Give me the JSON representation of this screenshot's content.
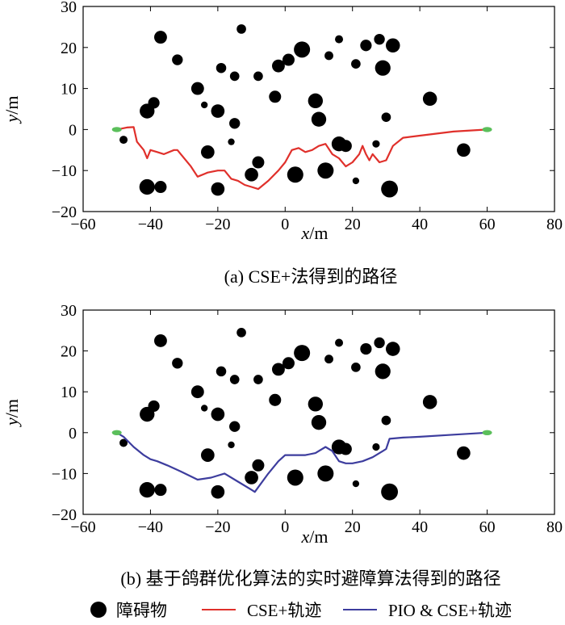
{
  "chart_data": [
    {
      "type": "scatter",
      "caption": "(a) CSE+法得到的路径",
      "xlabel": "x/m",
      "ylabel": "y/m",
      "xlim": [
        -60,
        80
      ],
      "ylim": [
        -20,
        30
      ],
      "xticks": [
        -60,
        -40,
        -20,
        0,
        20,
        40,
        60,
        80
      ],
      "yticks": [
        -20,
        -10,
        0,
        10,
        20,
        30
      ],
      "grid": false,
      "start_point": [
        -50,
        0
      ],
      "end_point": [
        60,
        0
      ],
      "series": [
        {
          "name": "CSE+轨迹",
          "color": "#e0302b",
          "points": [
            [
              -50,
              0
            ],
            [
              -47,
              0.5
            ],
            [
              -45,
              0.6
            ],
            [
              -44,
              -3
            ],
            [
              -42,
              -5
            ],
            [
              -41,
              -7
            ],
            [
              -40,
              -5
            ],
            [
              -38,
              -5.5
            ],
            [
              -36,
              -6
            ],
            [
              -33,
              -5
            ],
            [
              -32,
              -5
            ],
            [
              -31,
              -6
            ],
            [
              -28,
              -9
            ],
            [
              -26,
              -11.5
            ],
            [
              -23,
              -10.5
            ],
            [
              -20,
              -10
            ],
            [
              -18,
              -10
            ],
            [
              -16,
              -12
            ],
            [
              -14,
              -12.5
            ],
            [
              -12,
              -13.5
            ],
            [
              -10,
              -14
            ],
            [
              -8,
              -14.5
            ],
            [
              -5,
              -12.5
            ],
            [
              -2,
              -10
            ],
            [
              0,
              -8
            ],
            [
              2,
              -5
            ],
            [
              4,
              -4.5
            ],
            [
              6,
              -5.5
            ],
            [
              8,
              -5
            ],
            [
              10,
              -4
            ],
            [
              12,
              -3.5
            ],
            [
              14,
              -6
            ],
            [
              16,
              -7
            ],
            [
              18,
              -9
            ],
            [
              20,
              -8
            ],
            [
              22,
              -6
            ],
            [
              23,
              -4
            ],
            [
              24,
              -6
            ],
            [
              25,
              -7.5
            ],
            [
              26,
              -6
            ],
            [
              28,
              -8
            ],
            [
              30,
              -7.5
            ],
            [
              32,
              -4
            ],
            [
              35,
              -2
            ],
            [
              40,
              -1.5
            ],
            [
              50,
              -0.5
            ],
            [
              60,
              0
            ]
          ]
        }
      ]
    },
    {
      "type": "scatter",
      "caption": "(b) 基于鸽群优化算法的实时避障算法得到的路径",
      "xlabel": "x/m",
      "ylabel": "y/m",
      "xlim": [
        -60,
        80
      ],
      "ylim": [
        -20,
        30
      ],
      "xticks": [
        -60,
        -40,
        -20,
        0,
        20,
        40,
        60,
        80
      ],
      "yticks": [
        -20,
        -10,
        0,
        10,
        20,
        30
      ],
      "grid": false,
      "start_point": [
        -50,
        0
      ],
      "end_point": [
        60,
        0
      ],
      "series": [
        {
          "name": "PIO & CSE+轨迹",
          "color": "#3d3d9e",
          "points": [
            [
              -50,
              0
            ],
            [
              -48,
              -1
            ],
            [
              -45,
              -3.5
            ],
            [
              -42,
              -5.5
            ],
            [
              -40,
              -6.5
            ],
            [
              -38,
              -7
            ],
            [
              -35,
              -8
            ],
            [
              -31,
              -9.5
            ],
            [
              -26,
              -11.5
            ],
            [
              -22,
              -11
            ],
            [
              -18,
              -10
            ],
            [
              -14,
              -12
            ],
            [
              -10,
              -14
            ],
            [
              -9,
              -14.5
            ],
            [
              -5,
              -10
            ],
            [
              -2,
              -7
            ],
            [
              0,
              -5.5
            ],
            [
              3,
              -5.5
            ],
            [
              6,
              -5.5
            ],
            [
              9,
              -5
            ],
            [
              12,
              -3.5
            ],
            [
              14,
              -4.5
            ],
            [
              16,
              -7
            ],
            [
              18,
              -7.5
            ],
            [
              20,
              -7.5
            ],
            [
              23,
              -7
            ],
            [
              26,
              -6
            ],
            [
              29,
              -4.5
            ],
            [
              30,
              -4
            ],
            [
              31,
              -1.5
            ],
            [
              35,
              -1.2
            ],
            [
              40,
              -1
            ],
            [
              50,
              -0.5
            ],
            [
              60,
              0
            ]
          ]
        }
      ]
    }
  ],
  "obstacles": [
    [
      -37,
      22.5,
      1.9
    ],
    [
      -13,
      24.5,
      1.4
    ],
    [
      -32,
      17,
      1.6
    ],
    [
      -19,
      15,
      1.5
    ],
    [
      -15,
      13,
      1.4
    ],
    [
      -8,
      13,
      1.4
    ],
    [
      -2,
      15.5,
      1.9
    ],
    [
      1,
      17,
      1.8
    ],
    [
      5,
      19.5,
      2.4
    ],
    [
      13,
      18,
      1.3
    ],
    [
      16,
      22,
      1.2
    ],
    [
      21,
      16,
      1.4
    ],
    [
      24,
      20.5,
      1.7
    ],
    [
      28,
      22,
      1.6
    ],
    [
      32,
      20.5,
      2.1
    ],
    [
      29,
      15,
      2.3
    ],
    [
      -26,
      10,
      1.9
    ],
    [
      -3,
      8,
      1.8
    ],
    [
      9,
      7,
      2.2
    ],
    [
      -41,
      4.5,
      2.2
    ],
    [
      -39,
      6.5,
      1.7
    ],
    [
      -24,
      6,
      1.0
    ],
    [
      -20,
      4.5,
      2.0
    ],
    [
      -15,
      1.5,
      1.6
    ],
    [
      10,
      2.5,
      2.2
    ],
    [
      30,
      3,
      1.4
    ],
    [
      43,
      7.5,
      2.1
    ],
    [
      -23,
      -5.5,
      2.0
    ],
    [
      -16,
      -3,
      1.0
    ],
    [
      -8,
      -8,
      1.8
    ],
    [
      -10,
      -11,
      2.0
    ],
    [
      -48,
      -2.5,
      1.2
    ],
    [
      16,
      -3.5,
      2.2
    ],
    [
      18,
      -4,
      1.8
    ],
    [
      27,
      -3.5,
      1.1
    ],
    [
      53,
      -5,
      2.0
    ],
    [
      12,
      -10,
      2.4
    ],
    [
      3,
      -11,
      2.4
    ],
    [
      -41,
      -14,
      2.3
    ],
    [
      -37,
      -14,
      1.8
    ],
    [
      -20,
      -14.5,
      2.0
    ],
    [
      21,
      -12.5,
      1.0
    ],
    [
      31,
      -14.5,
      2.5
    ]
  ],
  "legend": {
    "obstacle_label": "障碍物",
    "cse_label": "CSE+轨迹",
    "pio_label": "PIO & CSE+轨迹",
    "cse_color": "#e0302b",
    "pio_color": "#3d3d9e",
    "marker_color": "#5bbf5b"
  }
}
